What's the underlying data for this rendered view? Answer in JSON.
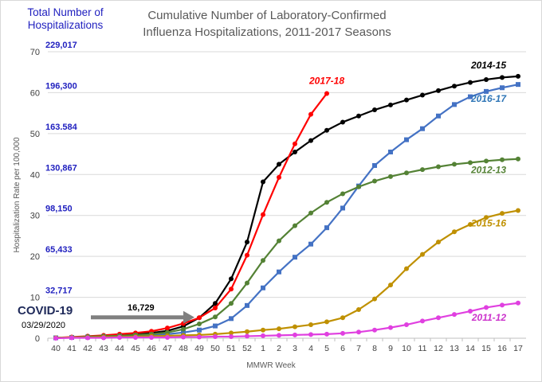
{
  "chart_data": {
    "type": "line",
    "title": "Cumulative Number of Laboratory-Confirmed",
    "subtitle": "Influenza Hospitalizations, 2011-2017 Seasons",
    "xlabel": "MMWR Week",
    "ylabel": "Hospitalization Rate per 100,000",
    "ylim": [
      0,
      70
    ],
    "yticks": [
      "0",
      "10",
      "20",
      "30",
      "40",
      "50",
      "60",
      "70"
    ],
    "categories": [
      "40",
      "41",
      "42",
      "43",
      "44",
      "45",
      "46",
      "47",
      "48",
      "49",
      "50",
      "51",
      "52",
      "1",
      "2",
      "3",
      "4",
      "5",
      "6",
      "7",
      "8",
      "9",
      "10",
      "11",
      "12",
      "13",
      "14",
      "15",
      "16",
      "17"
    ],
    "grid": true,
    "legend": "inline labels at line ends",
    "total_hosp_header": "Total Number of Hospitalizations",
    "total_hosp_color": "#1f1fbf",
    "total_hosp_labels": [
      {
        "y": 70,
        "text": "229,017"
      },
      {
        "y": 60,
        "text": "196,300"
      },
      {
        "y": 50,
        "text": "163.584"
      },
      {
        "y": 40,
        "text": "130,867"
      },
      {
        "y": 30,
        "text": "98,150"
      },
      {
        "y": 20,
        "text": "65,433"
      },
      {
        "y": 10,
        "text": "32,717"
      }
    ],
    "annotation": {
      "title": "COVID-19",
      "date": "03/29/2020",
      "value": "16,729",
      "x": "49",
      "y": 5.1
    },
    "series": [
      {
        "name": "2014-15",
        "color": "#000000",
        "marker": "circle",
        "label_color": "#000000",
        "values": [
          0.1,
          0.2,
          0.4,
          0.6,
          0.8,
          1.0,
          1.3,
          1.8,
          2.9,
          5.0,
          8.5,
          14.5,
          23.5,
          38.2,
          42.5,
          45.5,
          48.3,
          50.8,
          52.8,
          54.3,
          55.8,
          57.0,
          58.2,
          59.4,
          60.5,
          61.6,
          62.5,
          63.2,
          63.7,
          64.0
        ]
      },
      {
        "name": "2017-18",
        "color": "#ff0000",
        "marker": "circle",
        "label_color": "#ff0000",
        "values": [
          0.1,
          0.3,
          0.5,
          0.7,
          1.0,
          1.3,
          1.7,
          2.5,
          3.6,
          5.0,
          7.4,
          12.0,
          20.3,
          30.2,
          39.3,
          47.5,
          54.7,
          59.8,
          null,
          null,
          null,
          null,
          null,
          null,
          null,
          null,
          null,
          null,
          null,
          null
        ]
      },
      {
        "name": "2016-17",
        "color": "#4472c4",
        "marker": "square",
        "label_color": "#2e75b6",
        "values": [
          0.1,
          0.2,
          0.3,
          0.4,
          0.5,
          0.6,
          0.8,
          1.0,
          1.4,
          2.0,
          3.0,
          4.8,
          8.0,
          12.3,
          16.2,
          19.8,
          23.0,
          27.0,
          31.8,
          37.2,
          42.2,
          45.5,
          48.5,
          51.2,
          54.3,
          57.1,
          59.0,
          60.3,
          61.2,
          62.0
        ]
      },
      {
        "name": "2012-13",
        "color": "#548235",
        "marker": "circle",
        "label_color": "#548235",
        "values": [
          0.1,
          0.2,
          0.4,
          0.5,
          0.6,
          0.8,
          1.0,
          1.4,
          2.2,
          3.5,
          5.2,
          8.5,
          13.5,
          19.0,
          23.8,
          27.5,
          30.6,
          33.2,
          35.3,
          37.0,
          38.4,
          39.5,
          40.4,
          41.2,
          41.9,
          42.5,
          42.9,
          43.3,
          43.6,
          43.8
        ]
      },
      {
        "name": "2015-16",
        "color": "#bf9000",
        "marker": "circle",
        "label_color": "#bf9000",
        "values": [
          0.1,
          0.2,
          0.2,
          0.3,
          0.3,
          0.4,
          0.5,
          0.6,
          0.7,
          0.8,
          1.0,
          1.3,
          1.6,
          2.0,
          2.3,
          2.8,
          3.3,
          4.0,
          5.0,
          7.0,
          9.6,
          13.0,
          17.0,
          20.5,
          23.5,
          26.0,
          27.8,
          29.5,
          30.5,
          31.2
        ]
      },
      {
        "name": "2011-12",
        "color": "#e040e0",
        "marker": "circle",
        "label_color": "#cc33cc",
        "values": [
          0.0,
          0.1,
          0.1,
          0.1,
          0.2,
          0.2,
          0.2,
          0.2,
          0.3,
          0.3,
          0.4,
          0.4,
          0.5,
          0.6,
          0.7,
          0.8,
          0.9,
          1.0,
          1.2,
          1.5,
          2.0,
          2.6,
          3.3,
          4.2,
          5.0,
          5.8,
          6.6,
          7.5,
          8.1,
          8.6
        ]
      }
    ]
  }
}
